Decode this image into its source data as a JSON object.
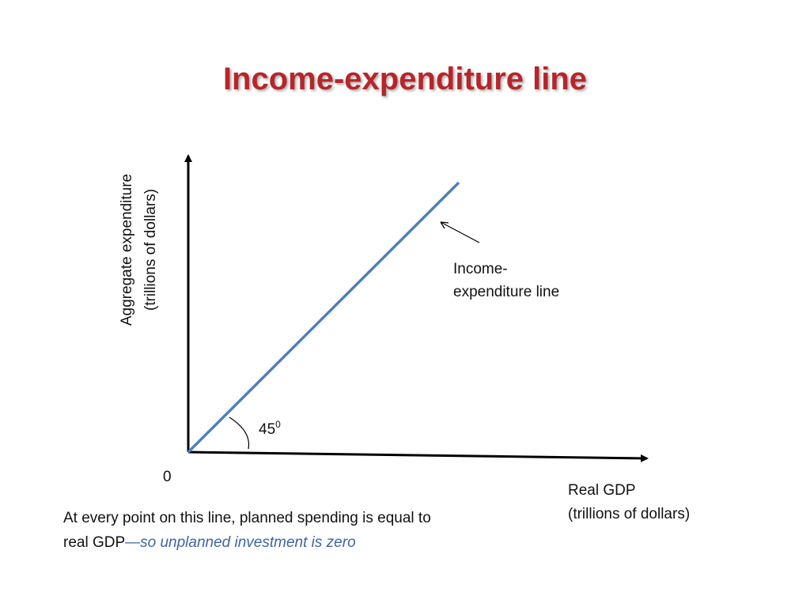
{
  "title": "Income-expenditure line",
  "y_axis_label": {
    "lines": [
      "Aggregate expenditure",
      "(trillions of dollars)"
    ]
  },
  "x_axis_label": {
    "lines": [
      "Real GDP",
      "(trillions of dollars)"
    ]
  },
  "origin_label": "0",
  "line_label": {
    "lines": [
      "Income-",
      "expenditure line"
    ]
  },
  "angle_label": {
    "base": "45",
    "sup": "0"
  },
  "caption": {
    "text": "At every point on this line, planned spending is equal to real GDP",
    "emphasis": "—so unplanned investment is zero"
  }
}
